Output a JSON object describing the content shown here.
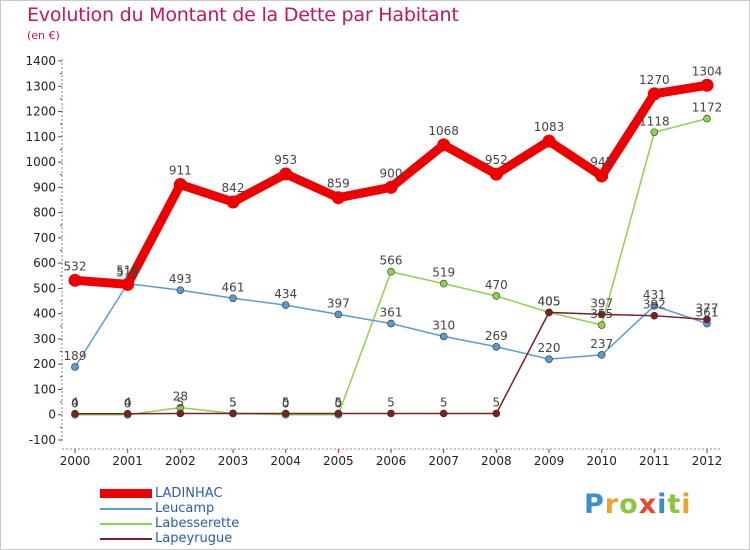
{
  "header": {
    "title": "Evolution du Montant de la Dette par Habitant",
    "subtitle": "(en €)"
  },
  "logo": {
    "text": "Proxiti",
    "letters": [
      {
        "ch": "P",
        "color": "#3a8fd0"
      },
      {
        "ch": "r",
        "color": "#f0a022"
      },
      {
        "ch": "o",
        "color": "#8cc63f"
      },
      {
        "ch": "x",
        "color": "#e64a2e"
      },
      {
        "ch": "i",
        "color": "#3a8fd0"
      },
      {
        "ch": "t",
        "color": "#8cc63f"
      },
      {
        "ch": "i",
        "color": "#f0a022"
      }
    ]
  },
  "chart_data": {
    "type": "line",
    "title": "Evolution du Montant de la Dette par Habitant",
    "ylabel": "(en €)",
    "xlabel": "",
    "x": [
      2000,
      2001,
      2002,
      2003,
      2004,
      2005,
      2006,
      2007,
      2008,
      2009,
      2010,
      2011,
      2012
    ],
    "x_tick_labels": [
      "2000",
      "2001",
      "2002",
      "2003",
      "2004",
      "2005",
      "2006",
      "2007",
      "2008",
      "2009",
      "2010",
      "2011",
      "2012"
    ],
    "ylim": [
      -100,
      1400
    ],
    "y_ticks": [
      -100,
      0,
      100,
      200,
      300,
      400,
      500,
      600,
      700,
      800,
      900,
      1000,
      1100,
      1200,
      1300,
      1400
    ],
    "y_tick_labels": [
      "-100",
      "0",
      "100",
      "200",
      "300",
      "400",
      "500",
      "600",
      "700",
      "800",
      "900",
      "1000",
      "1100",
      "1200",
      "1300",
      "1400"
    ],
    "grid": false,
    "legend_placement": "bottom-left",
    "series": [
      {
        "name": "Labesserette",
        "color": "#8fd14f",
        "values": [
          0,
          0,
          28,
          5,
          0,
          0,
          566,
          519,
          470,
          405,
          355,
          1118,
          1172
        ],
        "labels": [
          "0",
          "0",
          "28",
          "5",
          "0",
          "0",
          "566",
          "519",
          "470",
          "405",
          "355",
          "1118",
          "1172"
        ],
        "label_pos": [
          "above",
          "above",
          "above",
          "above",
          "above",
          "above",
          "above",
          "above",
          "above",
          "above",
          "above",
          "above",
          "above"
        ]
      },
      {
        "name": "Leucamp",
        "color": "#5b9bd5",
        "values": [
          189,
          519,
          493,
          461,
          434,
          397,
          361,
          310,
          269,
          220,
          237,
          431,
          361
        ],
        "labels": [
          "189",
          "519",
          "493",
          "461",
          "434",
          "397",
          "361",
          "310",
          "269",
          "220",
          "237",
          "431",
          "361"
        ],
        "label_pos": [
          "above",
          "above",
          "above",
          "above",
          "above",
          "above",
          "above",
          "above",
          "above",
          "above",
          "above",
          "above",
          "above"
        ]
      },
      {
        "name": "Lapeyrugue",
        "color": "#7a2222",
        "values": [
          4,
          4,
          5,
          5,
          5,
          5,
          5,
          5,
          5,
          405,
          397,
          392,
          377
        ],
        "labels": [
          "4",
          "4",
          "5",
          "5",
          "5",
          "5",
          "5",
          "5",
          "5",
          "405",
          "397",
          "392",
          "377"
        ],
        "label_pos": [
          "above",
          "above",
          "above",
          "above",
          "above",
          "above",
          "above",
          "above",
          "above",
          "above",
          "above",
          "above",
          "above"
        ]
      },
      {
        "name": "LADINHAC",
        "color": "#ee0000",
        "values": [
          532,
          516,
          911,
          842,
          953,
          859,
          900,
          1068,
          952,
          1083,
          945,
          1270,
          1304
        ],
        "labels": [
          "532",
          "516",
          "911",
          "842",
          "953",
          "859",
          "900",
          "1068",
          "952",
          "1083",
          "945",
          "1270",
          "1304"
        ],
        "label_pos": [
          "above",
          "above",
          "above",
          "above",
          "above",
          "above",
          "above",
          "above",
          "above",
          "above",
          "above",
          "above",
          "above"
        ]
      }
    ]
  },
  "legend": {
    "items": [
      {
        "label": "LADINHAC",
        "color": "#ee0000",
        "weight": 9
      },
      {
        "label": "Leucamp",
        "color": "#5b9bd5",
        "weight": 2
      },
      {
        "label": "Labesserette",
        "color": "#8fd14f",
        "weight": 2
      },
      {
        "label": "Lapeyrugue",
        "color": "#7a2222",
        "weight": 2
      }
    ]
  }
}
